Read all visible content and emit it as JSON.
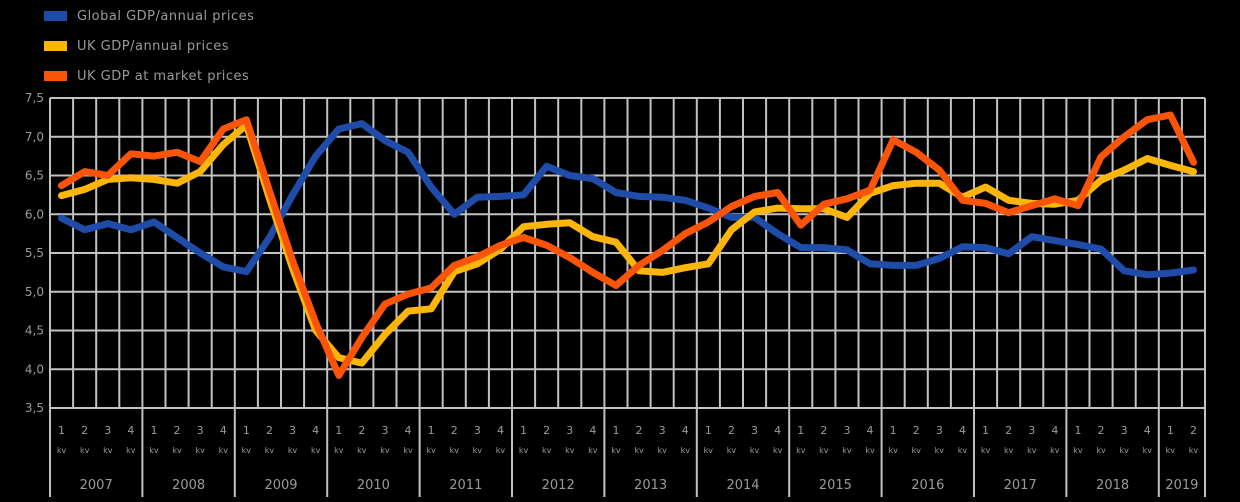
{
  "colors": {
    "background": "#000000",
    "grid": "#c2c2c2",
    "text": "#9a9a9a",
    "blue": "#1e4ca8",
    "yellow": "#fcb60b",
    "orange": "#fa5408"
  },
  "legend": {
    "items": [
      {
        "label": "Global GDP/annual prices",
        "color": "#1e4ca8"
      },
      {
        "label": "UK GDP/annual prices",
        "color": "#fcb60b"
      },
      {
        "label": "UK GDP at market prices",
        "color": "#fa5408"
      }
    ]
  },
  "chart_data": {
    "type": "line",
    "title": "",
    "xlabel": "",
    "ylabel": "",
    "ylim": [
      3.5,
      7.5
    ],
    "grid": true,
    "legend_position": "top-left",
    "y_axis": {
      "tick_labels": [
        "7,5",
        "7,0",
        "6,5",
        "6,0",
        "5,5",
        "5,0",
        "4,5",
        "4,0",
        "3,5"
      ],
      "tick_step": 0.5
    },
    "x_axis": {
      "years": [
        "2007",
        "2008",
        "2009",
        "2010",
        "2011",
        "2012",
        "2013",
        "2014",
        "2015",
        "2016",
        "2017",
        "2018",
        "2019"
      ],
      "quarter_labels": [
        "1",
        "2",
        "3",
        "4"
      ],
      "quarter_sublabel": "kv"
    },
    "categories": [
      "2007 Q1",
      "2007 Q2",
      "2007 Q3",
      "2007 Q4",
      "2008 Q1",
      "2008 Q2",
      "2008 Q3",
      "2008 Q4",
      "2009 Q1",
      "2009 Q2",
      "2009 Q3",
      "2009 Q4",
      "2010 Q1",
      "2010 Q2",
      "2010 Q3",
      "2010 Q4",
      "2011 Q1",
      "2011 Q2",
      "2011 Q3",
      "2011 Q4",
      "2012 Q1",
      "2012 Q2",
      "2012 Q3",
      "2012 Q4",
      "2013 Q1",
      "2013 Q2",
      "2013 Q3",
      "2013 Q4",
      "2014 Q1",
      "2014 Q2",
      "2014 Q3",
      "2014 Q4",
      "2015 Q1",
      "2015 Q2",
      "2015 Q3",
      "2015 Q4",
      "2016 Q1",
      "2016 Q2",
      "2016 Q3",
      "2016 Q4",
      "2017 Q1",
      "2017 Q2",
      "2017 Q3",
      "2017 Q4",
      "2018 Q1",
      "2018 Q2",
      "2018 Q3",
      "2018 Q4",
      "2019 Q1",
      "2019 Q2"
    ],
    "series": [
      {
        "name": "Global GDP/annual prices",
        "color": "#1e4ca8",
        "values": [
          5.95,
          5.8,
          5.88,
          5.8,
          5.9,
          5.7,
          5.5,
          5.32,
          5.26,
          5.7,
          6.25,
          6.75,
          7.1,
          7.17,
          6.95,
          6.8,
          6.35,
          6.0,
          6.22,
          6.23,
          6.25,
          6.62,
          6.5,
          6.46,
          6.28,
          6.23,
          6.22,
          6.18,
          6.08,
          5.96,
          5.96,
          5.75,
          5.57,
          5.57,
          5.54,
          5.36,
          5.34,
          5.34,
          5.43,
          5.58,
          5.57,
          5.49,
          5.71,
          5.66,
          5.61,
          5.55,
          5.27,
          5.22,
          5.24,
          5.28
        ]
      },
      {
        "name": "UK GDP/annual prices",
        "color": "#fcb60b",
        "values": [
          6.24,
          6.32,
          6.45,
          6.47,
          6.45,
          6.4,
          6.55,
          6.9,
          7.15,
          6.2,
          5.3,
          4.5,
          4.15,
          4.08,
          4.45,
          4.75,
          4.78,
          5.26,
          5.36,
          5.55,
          5.84,
          5.87,
          5.89,
          5.71,
          5.64,
          5.27,
          5.25,
          5.31,
          5.36,
          5.8,
          6.03,
          6.08,
          6.07,
          6.07,
          5.96,
          6.27,
          6.37,
          6.4,
          6.4,
          6.22,
          6.35,
          6.18,
          6.14,
          6.13,
          6.18,
          6.44,
          6.57,
          6.72,
          6.63,
          6.55
        ]
      },
      {
        "name": "UK GDP at market prices",
        "color": "#fa5408",
        "values": [
          6.37,
          6.55,
          6.5,
          6.78,
          6.75,
          6.8,
          6.68,
          7.1,
          7.22,
          6.3,
          5.4,
          4.6,
          3.92,
          4.41,
          4.84,
          4.97,
          5.05,
          5.34,
          5.45,
          5.6,
          5.7,
          5.6,
          5.44,
          5.25,
          5.08,
          5.34,
          5.53,
          5.75,
          5.9,
          6.1,
          6.23,
          6.28,
          5.86,
          6.13,
          6.2,
          6.31,
          6.96,
          6.8,
          6.57,
          6.18,
          6.14,
          6.02,
          6.11,
          6.2,
          6.11,
          6.74,
          7.0,
          7.22,
          7.28,
          6.67
        ]
      }
    ]
  }
}
